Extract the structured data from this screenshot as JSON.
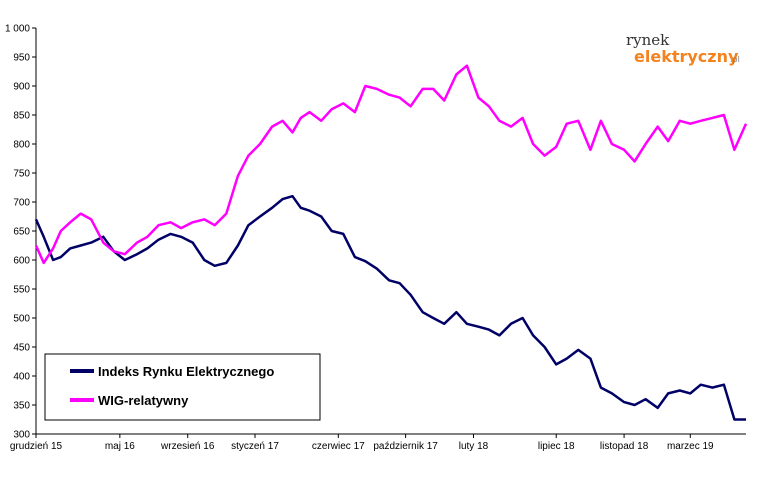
{
  "logo": {
    "top_text": "rynek",
    "main_text": "elektryczny",
    "suffix": ".pl",
    "main_color": "#f4821f"
  },
  "chart_data": {
    "type": "line",
    "title": "",
    "xlabel": "",
    "ylabel": "",
    "ylim": [
      300,
      1000
    ],
    "yticks": [
      300,
      350,
      400,
      450,
      500,
      550,
      600,
      650,
      700,
      750,
      800,
      850,
      900,
      950,
      1000
    ],
    "ytick_labels": [
      "300",
      "350",
      "400",
      "450",
      "500",
      "550",
      "600",
      "650",
      "700",
      "750",
      "800",
      "850",
      "900",
      "950",
      "1 000"
    ],
    "xtick_labels": [
      "grudzień 15",
      "maj 16",
      "wrzesień 16",
      "styczeń 17",
      "czerwiec 17",
      "październik 17",
      "luty 18",
      "lipiec 18",
      "listopad 18",
      "marzec 19"
    ],
    "xtick_dates": [
      "2015-12-01",
      "2016-05-01",
      "2016-09-01",
      "2017-01-01",
      "2017-06-01",
      "2017-10-01",
      "2018-02-01",
      "2018-07-01",
      "2018-11-01",
      "2019-03-01"
    ],
    "x_range": [
      "2015-12-01",
      "2019-06-10"
    ],
    "grid": false,
    "legend_position": "bottom-left",
    "series": [
      {
        "name": "Indeks Rynku Elektrycznego",
        "color": "#000066",
        "x": [
          "2015-12-01",
          "2015-12-15",
          "2016-01-01",
          "2016-01-15",
          "2016-02-01",
          "2016-02-20",
          "2016-03-10",
          "2016-04-01",
          "2016-04-20",
          "2016-05-10",
          "2016-06-01",
          "2016-06-20",
          "2016-07-10",
          "2016-08-01",
          "2016-08-20",
          "2016-09-10",
          "2016-10-01",
          "2016-10-20",
          "2016-11-10",
          "2016-12-01",
          "2016-12-20",
          "2017-01-10",
          "2017-02-01",
          "2017-02-20",
          "2017-03-10",
          "2017-03-25",
          "2017-04-10",
          "2017-05-01",
          "2017-05-20",
          "2017-06-10",
          "2017-07-01",
          "2017-07-20",
          "2017-08-10",
          "2017-09-01",
          "2017-09-20",
          "2017-10-10",
          "2017-11-01",
          "2017-11-20",
          "2017-12-10",
          "2018-01-01",
          "2018-01-20",
          "2018-02-10",
          "2018-03-01",
          "2018-03-20",
          "2018-04-10",
          "2018-05-01",
          "2018-05-20",
          "2018-06-10",
          "2018-07-01",
          "2018-07-20",
          "2018-08-10",
          "2018-09-01",
          "2018-09-20",
          "2018-10-10",
          "2018-11-01",
          "2018-11-20",
          "2018-12-10",
          "2019-01-01",
          "2019-01-20",
          "2019-02-10",
          "2019-03-01",
          "2019-03-20",
          "2019-04-10",
          "2019-05-01",
          "2019-05-20",
          "2019-06-10"
        ],
        "values": [
          670,
          640,
          600,
          605,
          620,
          625,
          630,
          640,
          615,
          600,
          610,
          620,
          635,
          645,
          640,
          630,
          600,
          590,
          595,
          625,
          660,
          675,
          690,
          705,
          710,
          690,
          685,
          675,
          650,
          645,
          605,
          598,
          585,
          565,
          560,
          540,
          510,
          500,
          490,
          510,
          490,
          485,
          480,
          470,
          490,
          500,
          470,
          450,
          420,
          430,
          445,
          430,
          380,
          370,
          355,
          350,
          360,
          345,
          370,
          375,
          370,
          385,
          380,
          385,
          325,
          325
        ]
      },
      {
        "name": "WIG-relatywny",
        "color": "#ff00ff",
        "x": [
          "2015-12-01",
          "2015-12-15",
          "2016-01-01",
          "2016-01-15",
          "2016-02-01",
          "2016-02-20",
          "2016-03-10",
          "2016-04-01",
          "2016-04-20",
          "2016-05-10",
          "2016-06-01",
          "2016-06-20",
          "2016-07-10",
          "2016-08-01",
          "2016-08-20",
          "2016-09-10",
          "2016-10-01",
          "2016-10-20",
          "2016-11-10",
          "2016-12-01",
          "2016-12-20",
          "2017-01-10",
          "2017-02-01",
          "2017-02-20",
          "2017-03-10",
          "2017-03-25",
          "2017-04-10",
          "2017-05-01",
          "2017-05-20",
          "2017-06-10",
          "2017-07-01",
          "2017-07-20",
          "2017-08-10",
          "2017-09-01",
          "2017-09-20",
          "2017-10-10",
          "2017-11-01",
          "2017-11-20",
          "2017-12-10",
          "2018-01-01",
          "2018-01-20",
          "2018-02-10",
          "2018-03-01",
          "2018-03-20",
          "2018-04-10",
          "2018-05-01",
          "2018-05-20",
          "2018-06-10",
          "2018-07-01",
          "2018-07-20",
          "2018-08-10",
          "2018-09-01",
          "2018-09-20",
          "2018-10-10",
          "2018-11-01",
          "2018-11-20",
          "2018-12-10",
          "2019-01-01",
          "2019-01-20",
          "2019-02-10",
          "2019-03-01",
          "2019-03-20",
          "2019-04-10",
          "2019-05-01",
          "2019-05-20",
          "2019-06-10"
        ],
        "values": [
          625,
          595,
          620,
          650,
          665,
          680,
          670,
          630,
          615,
          610,
          630,
          640,
          660,
          665,
          655,
          665,
          670,
          660,
          680,
          745,
          780,
          800,
          830,
          840,
          820,
          845,
          855,
          840,
          860,
          870,
          855,
          900,
          895,
          885,
          880,
          865,
          895,
          895,
          875,
          920,
          935,
          880,
          865,
          840,
          830,
          845,
          800,
          780,
          795,
          835,
          840,
          790,
          840,
          800,
          790,
          770,
          800,
          830,
          805,
          840,
          835,
          840,
          845,
          850,
          790,
          835
        ]
      }
    ]
  }
}
